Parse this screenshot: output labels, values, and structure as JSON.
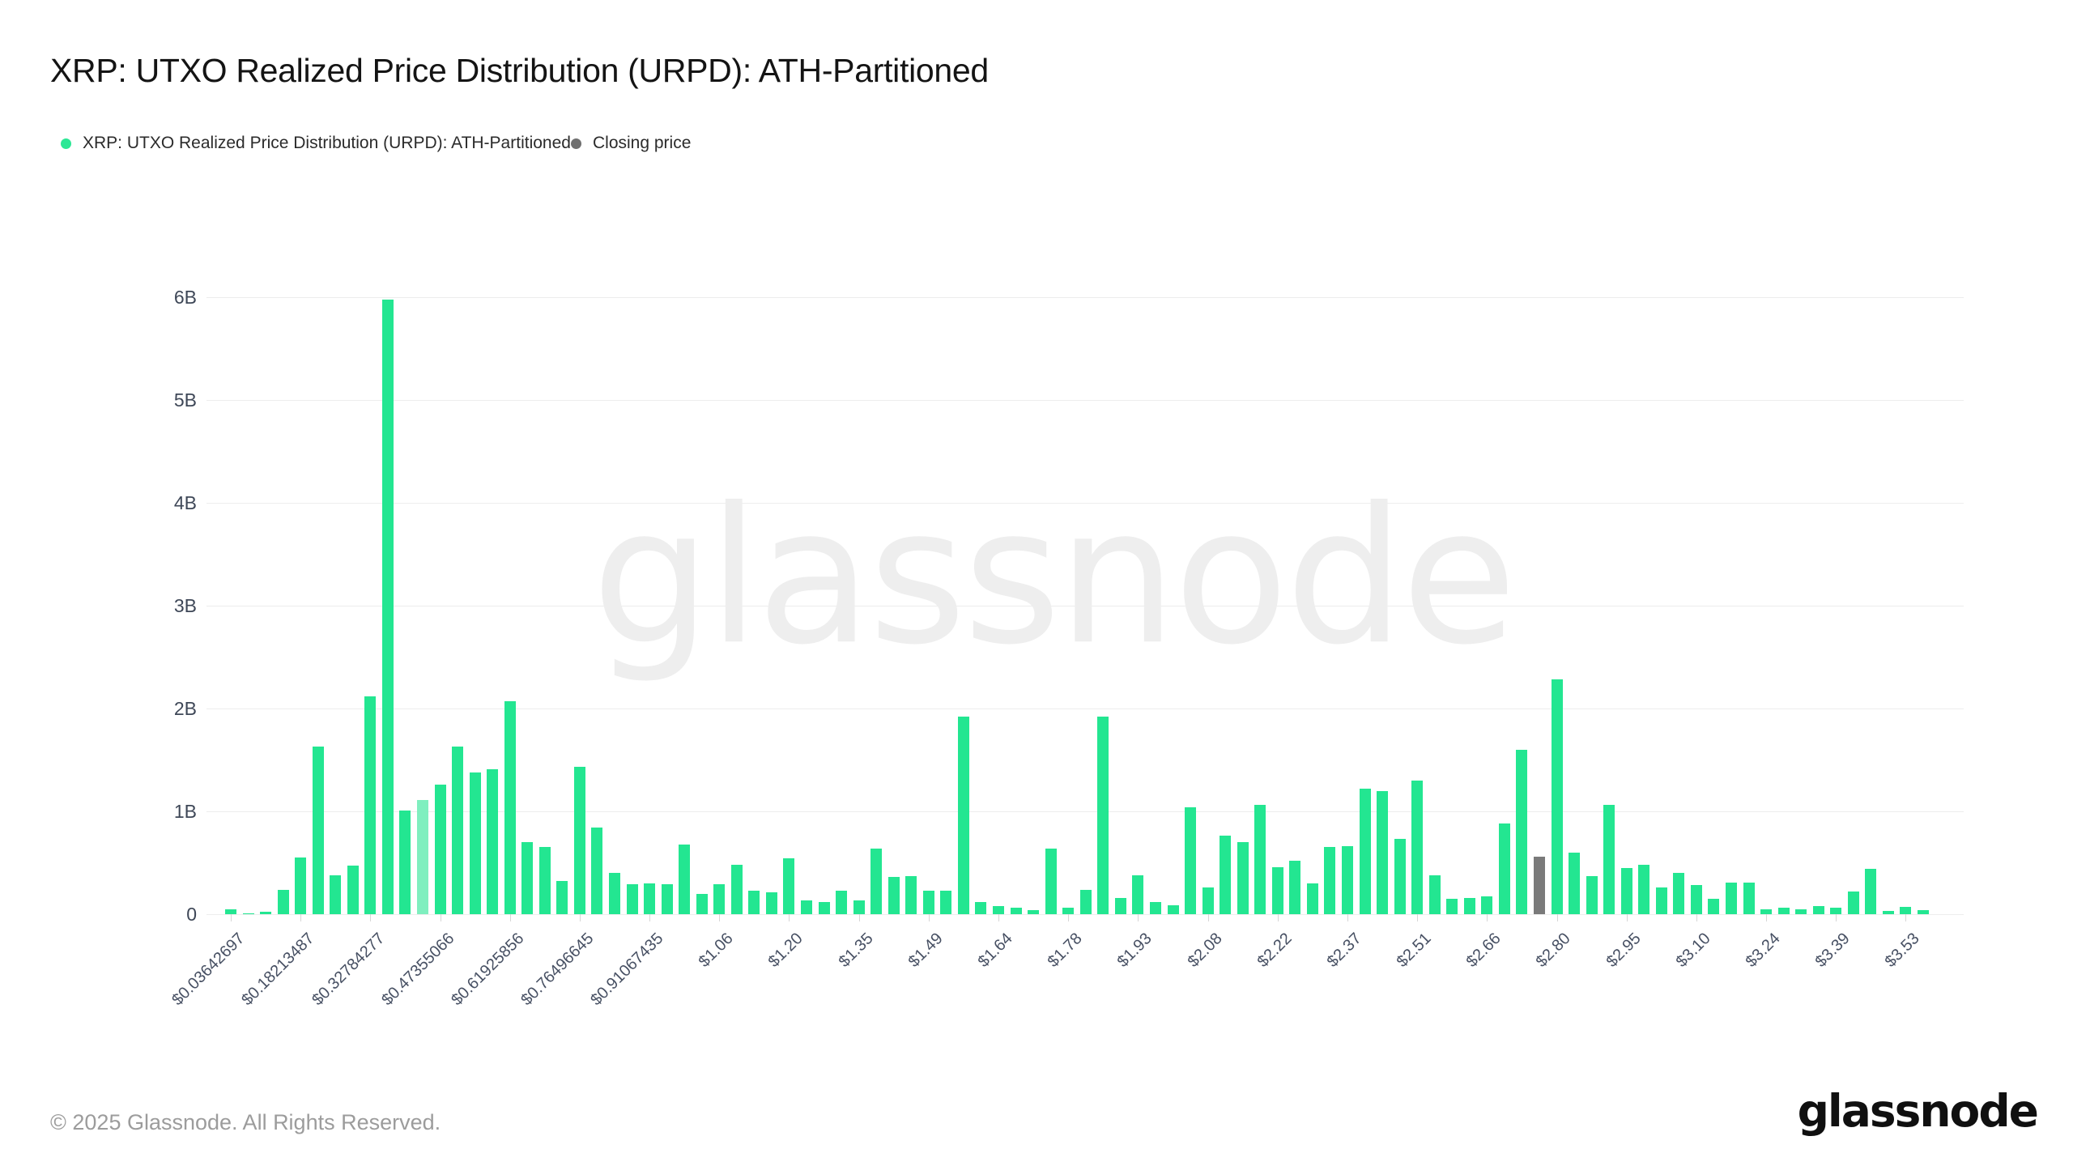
{
  "header": {
    "title": "XRP: UTXO Realized Price Distribution (URPD): ATH-Partitioned"
  },
  "legend": [
    {
      "label": "XRP: UTXO Realized Price Distribution (URPD): ATH-Partitioned",
      "color": "#2ce795"
    },
    {
      "label": "Closing price",
      "color": "#6f6f6f"
    }
  ],
  "footer": {
    "copyright": "© 2025 Glassnode. All Rights Reserved.",
    "logo_text": "glassnode"
  },
  "watermark": "glassnode",
  "chart_data": {
    "type": "bar",
    "title": "XRP: UTXO Realized Price Distribution (URPD): ATH-Partitioned",
    "xlabel": "",
    "ylabel": "",
    "unit": "billions of XRP",
    "ylim": [
      0,
      6.2
    ],
    "grid": "horizontal",
    "legend_position": "top-left",
    "yticks": [
      "0",
      "1B",
      "2B",
      "3B",
      "4B",
      "5B",
      "6B"
    ],
    "x_tick_every": 4,
    "x_tick_labels": [
      "$0.03642697",
      "$0.18213487",
      "$0.32784277",
      "$0.47355066",
      "$0.61925856",
      "$0.76496645",
      "$0.91067435",
      "$1.06",
      "$1.20",
      "$1.35",
      "$1.49",
      "$1.64",
      "$1.78",
      "$1.93",
      "$2.08",
      "$2.22",
      "$2.37",
      "$2.51",
      "$2.66",
      "$2.80",
      "$2.95",
      "$3.10",
      "$3.24",
      "$3.39",
      "$3.53"
    ],
    "values": [
      0.05,
      0.01,
      0.02,
      0.24,
      0.55,
      1.63,
      0.38,
      0.47,
      2.12,
      5.98,
      1.01,
      1.11,
      1.26,
      1.63,
      1.38,
      1.41,
      2.07,
      0.7,
      0.65,
      0.32,
      1.43,
      0.84,
      0.4,
      0.29,
      0.3,
      0.29,
      0.68,
      0.2,
      0.29,
      0.48,
      0.23,
      0.21,
      0.54,
      0.13,
      0.12,
      0.23,
      0.13,
      0.64,
      0.36,
      0.37,
      0.23,
      0.23,
      1.92,
      0.12,
      0.08,
      0.06,
      0.04,
      0.64,
      0.06,
      0.24,
      1.92,
      0.16,
      0.38,
      0.12,
      0.09,
      1.04,
      0.26,
      0.76,
      0.7,
      1.06,
      0.46,
      0.52,
      0.3,
      0.65,
      0.66,
      1.22,
      1.2,
      0.73,
      1.3,
      0.38,
      0.15,
      0.16,
      0.17,
      0.88,
      1.6,
      0.56,
      2.28,
      0.6,
      0.37,
      1.06,
      0.45,
      0.48,
      0.26,
      0.4,
      0.28,
      0.15,
      0.31,
      0.31,
      0.05,
      0.06,
      0.05,
      0.08,
      0.06,
      0.22,
      0.44,
      0.03,
      0.07,
      0.04
    ],
    "closing_price_index": 75,
    "highlight_index": 11,
    "colors": {
      "bar": "#23e691",
      "bar_highlight": "#7fefbf",
      "closing_bar": "#7a7a7a",
      "gridline": "#ededed",
      "axis_text": "#475063",
      "watermark": "#eeeeee"
    }
  }
}
